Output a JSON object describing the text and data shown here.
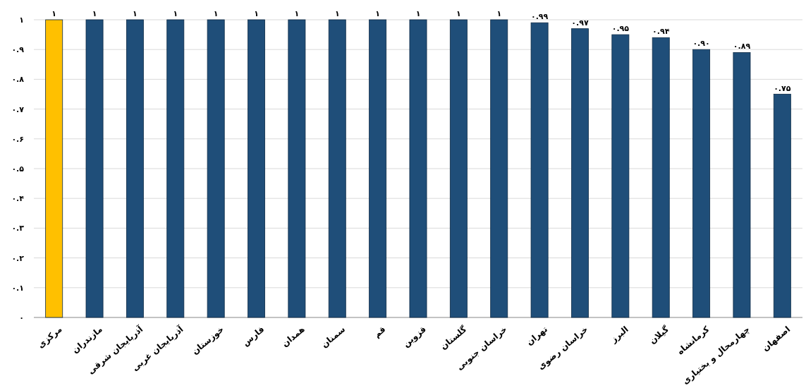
{
  "chart_data": {
    "type": "bar",
    "categories": [
      "مرکزی",
      "مازندران",
      "آذربایجان شرقی",
      "آذربایجان غربی",
      "خوزستان",
      "فارس",
      "همدان",
      "سمنان",
      "قم",
      "قزوین",
      "گلستان",
      "خراسان جنوبی",
      "تهران",
      "خراسان رضوی",
      "البرز",
      "گیلان",
      "کرمانشاه",
      "چهارمحال و بختیاری",
      "اصفهان"
    ],
    "values": [
      1,
      1,
      1,
      1,
      1,
      1,
      1,
      1,
      1,
      1,
      1,
      1,
      0.99,
      0.97,
      0.95,
      0.94,
      0.9,
      0.89,
      0.75
    ],
    "value_labels": [
      "۱",
      "۱",
      "۱",
      "۱",
      "۱",
      "۱",
      "۱",
      "۱",
      "۱",
      "۱",
      "۱",
      "۱",
      "۰.۹۹",
      "۰.۹۷",
      "۰.۹۵",
      "۰.۹۴",
      "۰.۹۰",
      "۰.۸۹",
      "۰.۷۵"
    ],
    "colors": [
      "#ffc000",
      "#1f4e79",
      "#1f4e79",
      "#1f4e79",
      "#1f4e79",
      "#1f4e79",
      "#1f4e79",
      "#1f4e79",
      "#1f4e79",
      "#1f4e79",
      "#1f4e79",
      "#1f4e79",
      "#1f4e79",
      "#1f4e79",
      "#1f4e79",
      "#1f4e79",
      "#1f4e79",
      "#1f4e79",
      "#1f4e79"
    ],
    "ylim": [
      0,
      1
    ],
    "yticks": [
      {
        "value": 0,
        "label": "۰"
      },
      {
        "value": 0.1,
        "label": "۰.۱"
      },
      {
        "value": 0.2,
        "label": "۰.۲"
      },
      {
        "value": 0.3,
        "label": "۰.۳"
      },
      {
        "value": 0.4,
        "label": "۰.۴"
      },
      {
        "value": 0.5,
        "label": "۰.۵"
      },
      {
        "value": 0.6,
        "label": "۰.۶"
      },
      {
        "value": 0.7,
        "label": "۰.۷"
      },
      {
        "value": 0.8,
        "label": "۰.۸"
      },
      {
        "value": 0.9,
        "label": "۰.۹"
      },
      {
        "value": 1,
        "label": "۱"
      }
    ],
    "grid": "y"
  }
}
